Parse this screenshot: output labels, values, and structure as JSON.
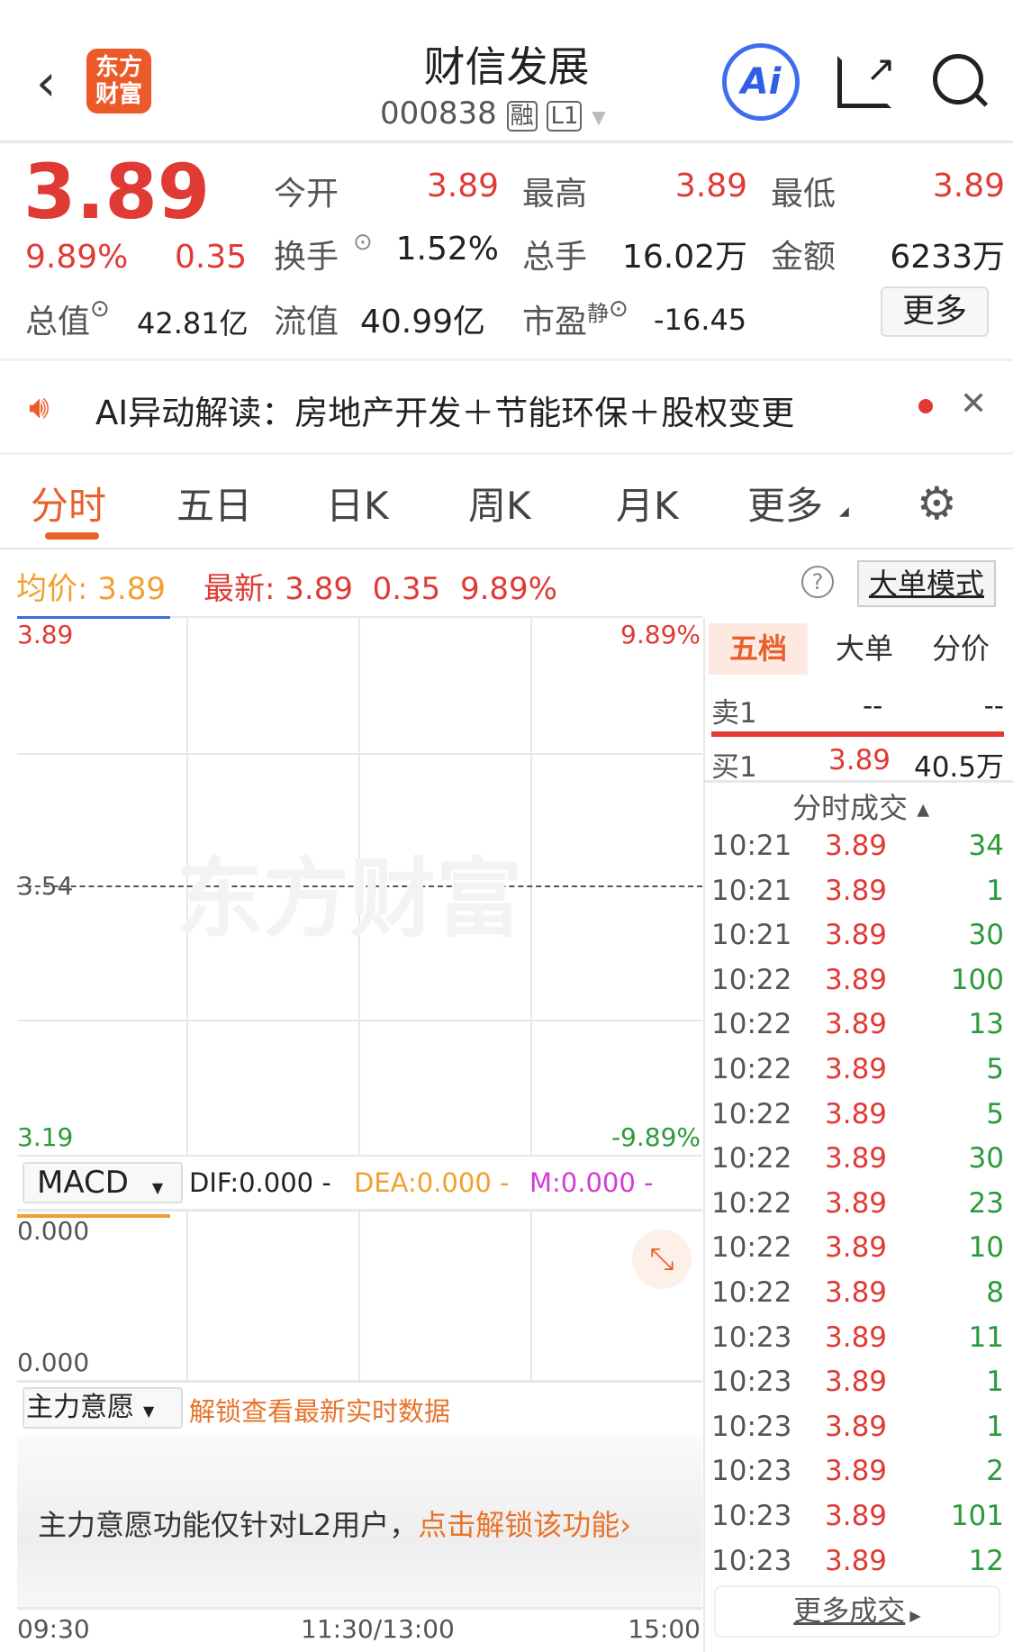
{
  "header": {
    "title": "财信发展",
    "code": "000838",
    "badge_rong": "融",
    "badge_l1": "L1",
    "logo": "东方财富"
  },
  "quote": {
    "price": "3.89",
    "pct": "9.89%",
    "change": "0.35",
    "stats": [
      {
        "label": "今开",
        "value": "3.89",
        "red": true
      },
      {
        "label": "最高",
        "value": "3.89",
        "red": true
      },
      {
        "label": "最低",
        "value": "3.89",
        "red": true
      },
      {
        "label": "换手",
        "value": "1.52%"
      },
      {
        "label": "总手",
        "value": "16.02万"
      },
      {
        "label": "金额",
        "value": "6233万"
      }
    ],
    "total_label": "总值",
    "total_value": "42.81亿",
    "float_label": "流值",
    "float_value": "40.99亿",
    "pe_label": "市盈",
    "pe_sup": "静",
    "pe_value": "-16.45",
    "more": "更多"
  },
  "banner": {
    "text": "AI异动解读：房地产开发＋节能环保＋股权变更"
  },
  "tabs": [
    "分时",
    "五日",
    "日K",
    "周K",
    "月K",
    "更多"
  ],
  "info": {
    "avg_label": "均价:",
    "avg": "3.89",
    "latest_label": "最新:",
    "latest": "3.89",
    "chg": "0.35",
    "pct": "9.89%",
    "bigmode": "大单模式"
  },
  "chart": {
    "top_price": "3.89",
    "top_pct": "9.89%",
    "mid_price": "3.54",
    "bot_price": "3.19",
    "bot_pct": "-9.89%",
    "watermark": "东方财富",
    "macd": {
      "name": "MACD",
      "dif": "DIF:0.000 -",
      "dea": "DEA:0.000 -",
      "m": "M:0.000 -",
      "top": "0.000",
      "bot": "0.000"
    },
    "zlyy": {
      "name": "主力意愿",
      "unlock": "解锁查看最新实时数据",
      "msg": "主力意愿功能仅针对L2用户，",
      "link": "点击解锁该功能›"
    },
    "times": [
      "09:30",
      "11:30/13:00",
      "15:00"
    ]
  },
  "panel": {
    "tabs": [
      "五档",
      "大单",
      "分价"
    ],
    "sell1": {
      "label": "卖1",
      "price": "--",
      "vol": "--"
    },
    "buy1": {
      "label": "买1",
      "price": "3.89",
      "vol": "40.5万"
    },
    "ticks_title": "分时成交",
    "ticks": [
      [
        "10:21",
        "3.89",
        "34"
      ],
      [
        "10:21",
        "3.89",
        "1"
      ],
      [
        "10:21",
        "3.89",
        "30"
      ],
      [
        "10:22",
        "3.89",
        "100"
      ],
      [
        "10:22",
        "3.89",
        "13"
      ],
      [
        "10:22",
        "3.89",
        "5"
      ],
      [
        "10:22",
        "3.89",
        "5"
      ],
      [
        "10:22",
        "3.89",
        "30"
      ],
      [
        "10:22",
        "3.89",
        "23"
      ],
      [
        "10:22",
        "3.89",
        "10"
      ],
      [
        "10:22",
        "3.89",
        "8"
      ],
      [
        "10:23",
        "3.89",
        "11"
      ],
      [
        "10:23",
        "3.89",
        "1"
      ],
      [
        "10:23",
        "3.89",
        "1"
      ],
      [
        "10:23",
        "3.89",
        "2"
      ],
      [
        "10:23",
        "3.89",
        "101"
      ],
      [
        "10:23",
        "3.89",
        "12"
      ]
    ],
    "more": "更多成交"
  }
}
